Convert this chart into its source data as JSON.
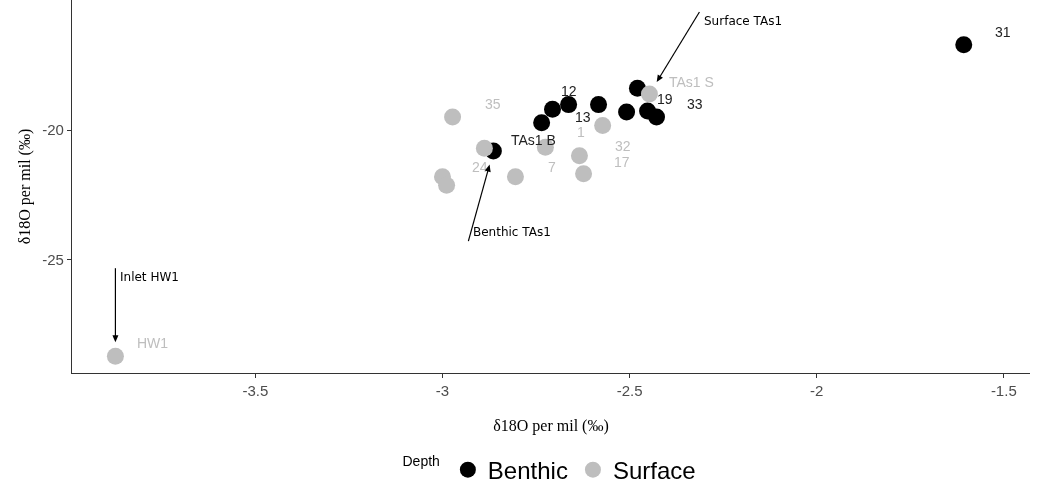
{
  "chart_data": {
    "type": "scatter",
    "xlabel": "δ18O per mil (‰)",
    "ylabel": "δ18O per mil (‰)",
    "legend_title": "Depth",
    "legend": "bottom",
    "marker": "circle",
    "grid": false,
    "xlim": [
      -3.99,
      -1.43
    ],
    "xticks": [
      -3.5,
      -3.0,
      -2.5,
      -2.0,
      -1.5
    ],
    "ylim": [
      -29.4,
      -14.96
    ],
    "yticks": [
      -20,
      -25
    ],
    "series": [
      {
        "name": "Benthic",
        "color": "#000000",
        "x": [
          -1.607,
          -2.479,
          -2.508,
          -2.452,
          -2.428,
          -2.583,
          -2.663,
          -2.706,
          -2.735,
          -2.864
        ],
        "values": [
          -16.69,
          -18.38,
          -19.3,
          -19.26,
          -19.49,
          -19.01,
          -19.01,
          -19.19,
          -19.71,
          -20.81
        ]
      },
      {
        "name": "Surface",
        "color": "#bebebe",
        "x": [
          -3.874,
          -2.447,
          -2.973,
          -2.572,
          -2.888,
          -2.725,
          -2.634,
          -2.623,
          -2.805,
          -3.0,
          -2.989
        ],
        "values": [
          -28.75,
          -18.6,
          -19.49,
          -19.82,
          -20.7,
          -20.66,
          -20.99,
          -21.69,
          -21.8,
          -21.8,
          -22.13
        ]
      }
    ],
    "annotations": [
      "Surface TAs1",
      "Benthic TAs1",
      "Inlet HW1",
      {
        "text": "31",
        "x": -1.607,
        "y": -16.69
      },
      {
        "text": "19",
        "x": -2.452,
        "y": -19.26
      },
      {
        "text": "33",
        "x": -2.428,
        "y": -19.49
      },
      {
        "text": "12",
        "x": -2.583,
        "y": -19.01
      },
      {
        "text": "13",
        "x": -2.663,
        "y": -19.01
      },
      {
        "text": "TAs1 B",
        "x": -2.864,
        "y": -20.81
      },
      {
        "text": "HW1",
        "x": -3.874,
        "y": -28.75
      },
      {
        "text": "TAs1 S",
        "x": -2.447,
        "y": -18.6
      },
      {
        "text": "35",
        "x": -2.973,
        "y": -19.49
      },
      {
        "text": "32",
        "x": -2.572,
        "y": -19.82
      },
      {
        "text": "24",
        "x": -2.888,
        "y": -20.7
      },
      {
        "text": "7",
        "x": -2.725,
        "y": -20.66
      },
      {
        "text": "1",
        "x": -2.634,
        "y": -20.99
      },
      {
        "text": "17",
        "x": -2.623,
        "y": -21.69
      }
    ]
  }
}
